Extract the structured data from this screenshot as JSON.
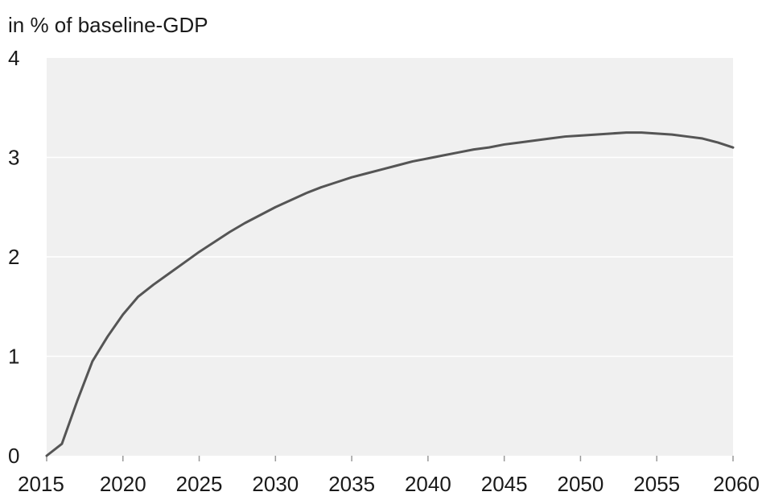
{
  "chart_data": {
    "type": "line",
    "title": "",
    "ylabel": "in % of baseline-GDP",
    "xlabel": "",
    "xlim": [
      2015,
      2060
    ],
    "ylim": [
      0,
      4
    ],
    "x_ticks": [
      2015,
      2020,
      2025,
      2030,
      2035,
      2040,
      2045,
      2050,
      2055,
      2060
    ],
    "y_ticks": [
      0,
      1,
      2,
      3,
      4
    ],
    "grid": true,
    "legend": "none",
    "colors": {
      "plot_background": "#f0f0f0",
      "gridline": "#ffffff",
      "line": "#555555",
      "text": "#1a1a1a"
    },
    "series": [
      {
        "x": [
          2015,
          2016,
          2017,
          2018,
          2019,
          2020,
          2021,
          2022,
          2023,
          2024,
          2025,
          2026,
          2027,
          2028,
          2029,
          2030,
          2031,
          2032,
          2033,
          2034,
          2035,
          2036,
          2037,
          2038,
          2039,
          2040,
          2041,
          2042,
          2043,
          2044,
          2045,
          2046,
          2047,
          2048,
          2049,
          2050,
          2051,
          2052,
          2053,
          2054,
          2055,
          2056,
          2057,
          2058,
          2059,
          2060
        ],
        "values": [
          0.0,
          0.12,
          0.55,
          0.95,
          1.2,
          1.42,
          1.6,
          1.72,
          1.83,
          1.94,
          2.05,
          2.15,
          2.25,
          2.34,
          2.42,
          2.5,
          2.57,
          2.64,
          2.7,
          2.75,
          2.8,
          2.84,
          2.88,
          2.92,
          2.96,
          2.99,
          3.02,
          3.05,
          3.08,
          3.1,
          3.13,
          3.15,
          3.17,
          3.19,
          3.21,
          3.22,
          3.23,
          3.24,
          3.25,
          3.25,
          3.24,
          3.23,
          3.21,
          3.19,
          3.15,
          3.1
        ]
      }
    ]
  }
}
